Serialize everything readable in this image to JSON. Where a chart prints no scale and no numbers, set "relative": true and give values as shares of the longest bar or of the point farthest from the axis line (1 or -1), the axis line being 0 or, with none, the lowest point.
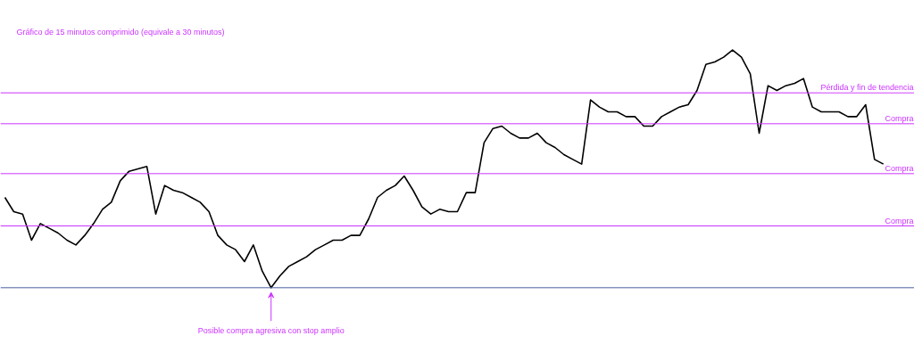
{
  "chart_data": {
    "type": "line",
    "relative": true,
    "title": "Gráfico de 15 minutos comprimido (equivale a 30 minutos)",
    "categories": [
      null,
      null,
      null,
      null,
      null,
      null,
      null,
      null,
      null,
      null,
      null,
      null,
      null,
      null,
      null,
      null,
      null,
      null,
      null,
      null,
      null,
      null,
      null,
      null,
      null,
      null,
      null,
      null,
      null,
      null,
      null,
      null,
      null,
      null,
      null,
      null,
      null,
      null,
      null,
      null,
      null,
      null,
      null,
      null,
      null,
      null,
      null,
      null,
      null,
      null,
      null,
      null,
      null,
      null,
      null,
      null,
      null,
      null,
      null,
      null,
      null,
      null,
      null,
      null,
      null,
      null,
      null,
      null,
      null,
      null,
      null,
      null,
      null,
      null,
      null,
      null,
      null,
      null,
      null,
      null,
      null,
      null,
      null,
      null,
      null,
      null,
      null,
      null,
      null,
      null,
      null,
      null,
      null,
      null,
      null,
      null,
      null,
      null,
      null,
      null
    ],
    "series": [
      {
        "color": "#000000",
        "values": [
          0.38,
          0.32,
          0.31,
          0.2,
          0.27,
          0.25,
          0.23,
          0.2,
          0.18,
          0.22,
          0.27,
          0.33,
          0.36,
          0.45,
          0.49,
          0.5,
          0.51,
          0.31,
          0.43,
          0.41,
          0.4,
          0.38,
          0.36,
          0.32,
          0.22,
          0.18,
          0.16,
          0.11,
          0.18,
          0.07,
          0,
          0.05,
          0.09,
          0.11,
          0.13,
          0.16,
          0.18,
          0.2,
          0.2,
          0.22,
          0.22,
          0.29,
          0.38,
          0.41,
          0.43,
          0.47,
          0.41,
          0.34,
          0.31,
          0.33,
          0.32,
          0.32,
          0.4,
          0.4,
          0.61,
          0.67,
          0.68,
          0.65,
          0.63,
          0.63,
          0.65,
          0.61,
          0.59,
          0.56,
          0.54,
          0.52,
          0.79,
          0.76,
          0.74,
          0.74,
          0.72,
          0.72,
          0.68,
          0.68,
          0.72,
          0.74,
          0.76,
          0.77,
          0.83,
          0.94,
          0.95,
          0.97,
          1,
          0.97,
          0.9,
          0.65,
          0.85,
          0.83,
          0.85,
          0.86,
          0.88,
          0.76,
          0.74,
          0.74,
          0.74,
          0.72,
          0.72,
          0.77,
          0.54,
          0.52
        ]
      }
    ],
    "ref_lines": [
      {
        "axis": "y",
        "value": 0,
        "label": null,
        "color": "#4a5fa0"
      },
      {
        "axis": "y",
        "value": 0.26,
        "label": "Compra",
        "color": "#cc33ff"
      },
      {
        "axis": "y",
        "value": 0.48,
        "label": "Compra",
        "color": "#cc33ff"
      },
      {
        "axis": "y",
        "value": 0.69,
        "label": "Compra",
        "color": "#cc33ff"
      },
      {
        "axis": "y",
        "value": 0.82,
        "label": "Pérdida y fin de tendencia",
        "color": "#cc33ff"
      }
    ],
    "annotations": [
      {
        "text": "Posible compra agresiva con stop amplio",
        "y": 0
      }
    ],
    "grid": false
  }
}
